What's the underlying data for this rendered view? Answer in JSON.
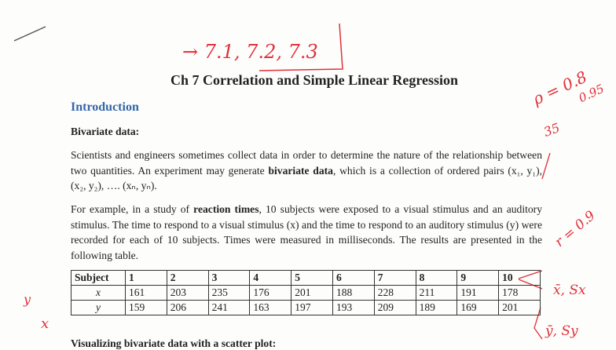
{
  "annotations": {
    "top": "→ 7.1, 7.2, 7.3",
    "rho": "ρ = 0.8",
    "rho2": "0.95",
    "n": "35",
    "r": "r = 0.9",
    "xbar": "x̄, Sx",
    "ybar": "ȳ, Sy",
    "y_mark": "y",
    "x_mark": "x"
  },
  "header": {
    "title": "Ch 7 Correlation and Simple Linear Regression"
  },
  "section": "Introduction",
  "subsection": "Bivariate data:",
  "paragraphs": [
    [
      "Scientists and engineers sometimes collect data in order to determine the nature of the relationship between two quantities. An experiment may generate ",
      "bivariate data",
      ", which is a collection of ordered pairs (x₁, y₁), (x₂, y₂), …. (xₙ, yₙ)."
    ],
    [
      "For example, in a study of ",
      "reaction times",
      ", 10 subjects were exposed to a visual stimulus and an auditory stimulus. The time to respond to a visual stimulus (x) and the time to respond to an auditory stimulus (y) were recorded for each of 10 subjects. Times were measured in milliseconds. The results are presented in the following table."
    ]
  ],
  "table": {
    "rows": [
      [
        "Subject",
        "1",
        "2",
        "3",
        "4",
        "5",
        "6",
        "7",
        "8",
        "9",
        "10"
      ],
      [
        "x",
        "161",
        "203",
        "235",
        "176",
        "201",
        "188",
        "228",
        "211",
        "191",
        "178"
      ],
      [
        "y",
        "159",
        "206",
        "241",
        "163",
        "197",
        "193",
        "209",
        "189",
        "169",
        "201"
      ]
    ]
  },
  "next_heading": "Visualizing bivariate data with a scatter plot:"
}
